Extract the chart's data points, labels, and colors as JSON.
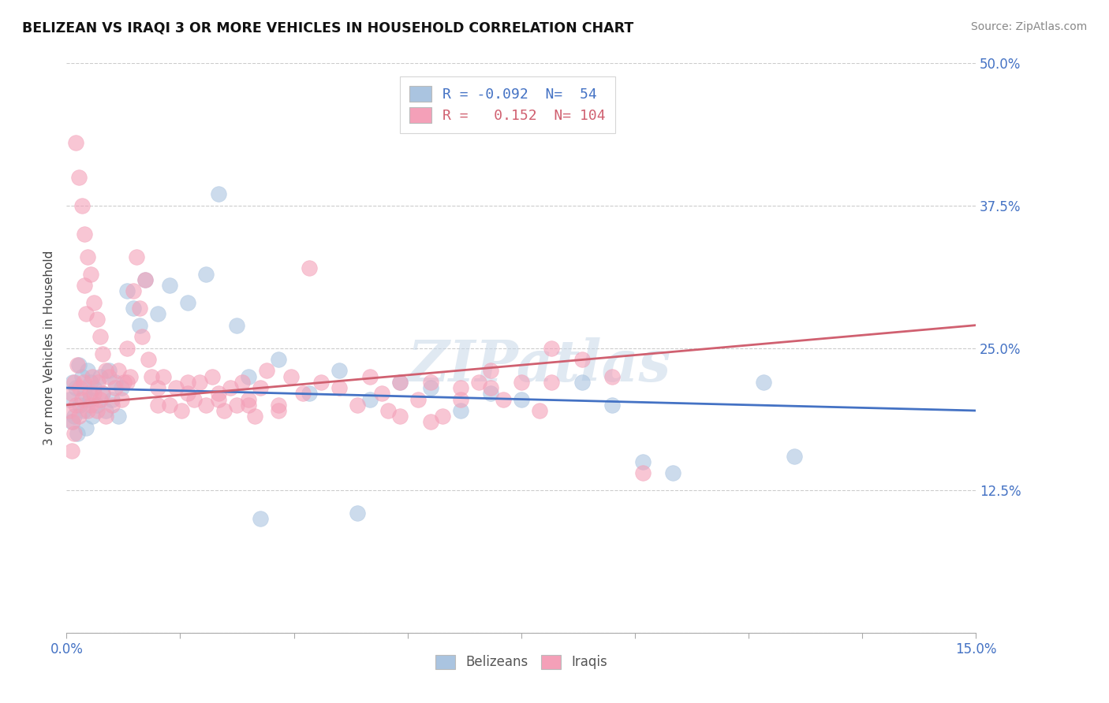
{
  "title": "BELIZEAN VS IRAQI 3 OR MORE VEHICLES IN HOUSEHOLD CORRELATION CHART",
  "source": "Source: ZipAtlas.com",
  "ylabel": "3 or more Vehicles in Household",
  "xlim": [
    0.0,
    15.0
  ],
  "ylim": [
    0.0,
    50.0
  ],
  "xtick_labels": [
    "0.0%",
    "",
    "",
    "",
    "",
    "",
    "",
    "",
    "15.0%"
  ],
  "xtick_vals": [
    0.0,
    1.875,
    3.75,
    5.625,
    7.5,
    9.375,
    11.25,
    13.125,
    15.0
  ],
  "ytick_vals": [
    0.0,
    12.5,
    25.0,
    37.5,
    50.0
  ],
  "ytick_labels": [
    "",
    "12.5%",
    "25.0%",
    "37.5%",
    "50.0%"
  ],
  "belizean_color": "#aac4e0",
  "iraqi_color": "#f4a0b8",
  "belizean_line_color": "#4472c4",
  "iraqi_line_color": "#d06070",
  "R_belizean": -0.092,
  "N_belizean": 54,
  "R_iraqi": 0.152,
  "N_iraqi": 104,
  "watermark": "ZIPatlas",
  "belizean_line": [
    [
      0.0,
      21.5
    ],
    [
      15.0,
      19.5
    ]
  ],
  "iraqi_line": [
    [
      0.0,
      20.0
    ],
    [
      15.0,
      27.0
    ]
  ],
  "belizean_scatter": [
    [
      0.05,
      20.5
    ],
    [
      0.08,
      18.5
    ],
    [
      0.1,
      22.0
    ],
    [
      0.12,
      19.0
    ],
    [
      0.15,
      21.5
    ],
    [
      0.18,
      17.5
    ],
    [
      0.2,
      23.5
    ],
    [
      0.22,
      20.0
    ],
    [
      0.25,
      22.5
    ],
    [
      0.28,
      19.5
    ],
    [
      0.3,
      21.0
    ],
    [
      0.32,
      18.0
    ],
    [
      0.35,
      23.0
    ],
    [
      0.38,
      20.5
    ],
    [
      0.4,
      22.0
    ],
    [
      0.42,
      19.0
    ],
    [
      0.45,
      21.5
    ],
    [
      0.5,
      20.0
    ],
    [
      0.55,
      22.5
    ],
    [
      0.6,
      21.0
    ],
    [
      0.65,
      19.5
    ],
    [
      0.7,
      23.0
    ],
    [
      0.75,
      20.5
    ],
    [
      0.8,
      22.0
    ],
    [
      0.85,
      19.0
    ],
    [
      0.9,
      21.5
    ],
    [
      1.0,
      30.0
    ],
    [
      1.1,
      28.5
    ],
    [
      1.2,
      27.0
    ],
    [
      1.3,
      31.0
    ],
    [
      1.5,
      28.0
    ],
    [
      1.7,
      30.5
    ],
    [
      2.0,
      29.0
    ],
    [
      2.3,
      31.5
    ],
    [
      2.5,
      38.5
    ],
    [
      2.8,
      27.0
    ],
    [
      3.0,
      22.5
    ],
    [
      3.5,
      24.0
    ],
    [
      4.0,
      21.0
    ],
    [
      4.5,
      23.0
    ],
    [
      5.0,
      20.5
    ],
    [
      5.5,
      22.0
    ],
    [
      6.0,
      21.5
    ],
    [
      6.5,
      19.5
    ],
    [
      7.0,
      21.0
    ],
    [
      7.5,
      20.5
    ],
    [
      8.5,
      22.0
    ],
    [
      9.0,
      20.0
    ],
    [
      9.5,
      15.0
    ],
    [
      10.0,
      14.0
    ],
    [
      11.5,
      22.0
    ],
    [
      12.0,
      15.5
    ],
    [
      3.2,
      10.0
    ],
    [
      4.8,
      10.5
    ]
  ],
  "iraqi_scatter": [
    [
      0.05,
      19.5
    ],
    [
      0.08,
      21.0
    ],
    [
      0.1,
      18.5
    ],
    [
      0.12,
      22.0
    ],
    [
      0.15,
      20.0
    ],
    [
      0.18,
      23.5
    ],
    [
      0.2,
      19.0
    ],
    [
      0.22,
      21.5
    ],
    [
      0.25,
      20.5
    ],
    [
      0.28,
      22.0
    ],
    [
      0.3,
      30.5
    ],
    [
      0.32,
      28.0
    ],
    [
      0.35,
      19.5
    ],
    [
      0.38,
      21.0
    ],
    [
      0.4,
      20.0
    ],
    [
      0.42,
      22.5
    ],
    [
      0.45,
      21.0
    ],
    [
      0.5,
      19.5
    ],
    [
      0.52,
      22.0
    ],
    [
      0.55,
      20.5
    ],
    [
      0.6,
      21.0
    ],
    [
      0.65,
      19.0
    ],
    [
      0.7,
      22.5
    ],
    [
      0.75,
      20.0
    ],
    [
      0.8,
      21.5
    ],
    [
      0.85,
      23.0
    ],
    [
      0.9,
      20.5
    ],
    [
      0.95,
      22.0
    ],
    [
      1.0,
      25.0
    ],
    [
      1.05,
      22.5
    ],
    [
      1.1,
      30.0
    ],
    [
      1.15,
      33.0
    ],
    [
      1.2,
      28.5
    ],
    [
      1.25,
      26.0
    ],
    [
      1.3,
      31.0
    ],
    [
      1.35,
      24.0
    ],
    [
      1.4,
      22.5
    ],
    [
      1.5,
      20.0
    ],
    [
      1.6,
      22.5
    ],
    [
      1.7,
      20.0
    ],
    [
      1.8,
      21.5
    ],
    [
      1.9,
      19.5
    ],
    [
      2.0,
      22.0
    ],
    [
      2.1,
      20.5
    ],
    [
      2.2,
      22.0
    ],
    [
      2.3,
      20.0
    ],
    [
      2.4,
      22.5
    ],
    [
      2.5,
      21.0
    ],
    [
      2.6,
      19.5
    ],
    [
      2.7,
      21.5
    ],
    [
      2.8,
      20.0
    ],
    [
      2.9,
      22.0
    ],
    [
      3.0,
      20.5
    ],
    [
      3.1,
      19.0
    ],
    [
      3.2,
      21.5
    ],
    [
      3.3,
      23.0
    ],
    [
      3.5,
      20.0
    ],
    [
      3.7,
      22.5
    ],
    [
      3.9,
      21.0
    ],
    [
      4.0,
      32.0
    ],
    [
      4.2,
      22.0
    ],
    [
      4.5,
      21.5
    ],
    [
      4.8,
      20.0
    ],
    [
      5.0,
      22.5
    ],
    [
      5.2,
      21.0
    ],
    [
      5.3,
      19.5
    ],
    [
      5.5,
      22.0
    ],
    [
      5.8,
      20.5
    ],
    [
      6.0,
      22.0
    ],
    [
      6.2,
      19.0
    ],
    [
      6.5,
      21.5
    ],
    [
      6.8,
      22.0
    ],
    [
      7.0,
      23.0
    ],
    [
      7.2,
      20.5
    ],
    [
      7.5,
      22.0
    ],
    [
      7.8,
      19.5
    ],
    [
      8.0,
      25.0
    ],
    [
      8.5,
      24.0
    ],
    [
      9.0,
      22.5
    ],
    [
      9.5,
      14.0
    ],
    [
      0.15,
      43.0
    ],
    [
      0.2,
      40.0
    ],
    [
      0.25,
      37.5
    ],
    [
      0.3,
      35.0
    ],
    [
      0.35,
      33.0
    ],
    [
      0.4,
      31.5
    ],
    [
      0.45,
      29.0
    ],
    [
      0.5,
      27.5
    ],
    [
      0.55,
      26.0
    ],
    [
      0.6,
      24.5
    ],
    [
      0.65,
      23.0
    ],
    [
      1.0,
      22.0
    ],
    [
      1.5,
      21.5
    ],
    [
      2.0,
      21.0
    ],
    [
      2.5,
      20.5
    ],
    [
      3.0,
      20.0
    ],
    [
      3.5,
      19.5
    ],
    [
      0.08,
      16.0
    ],
    [
      0.12,
      17.5
    ],
    [
      5.5,
      19.0
    ],
    [
      6.0,
      18.5
    ],
    [
      6.5,
      20.5
    ],
    [
      7.0,
      21.5
    ],
    [
      8.0,
      22.0
    ]
  ]
}
